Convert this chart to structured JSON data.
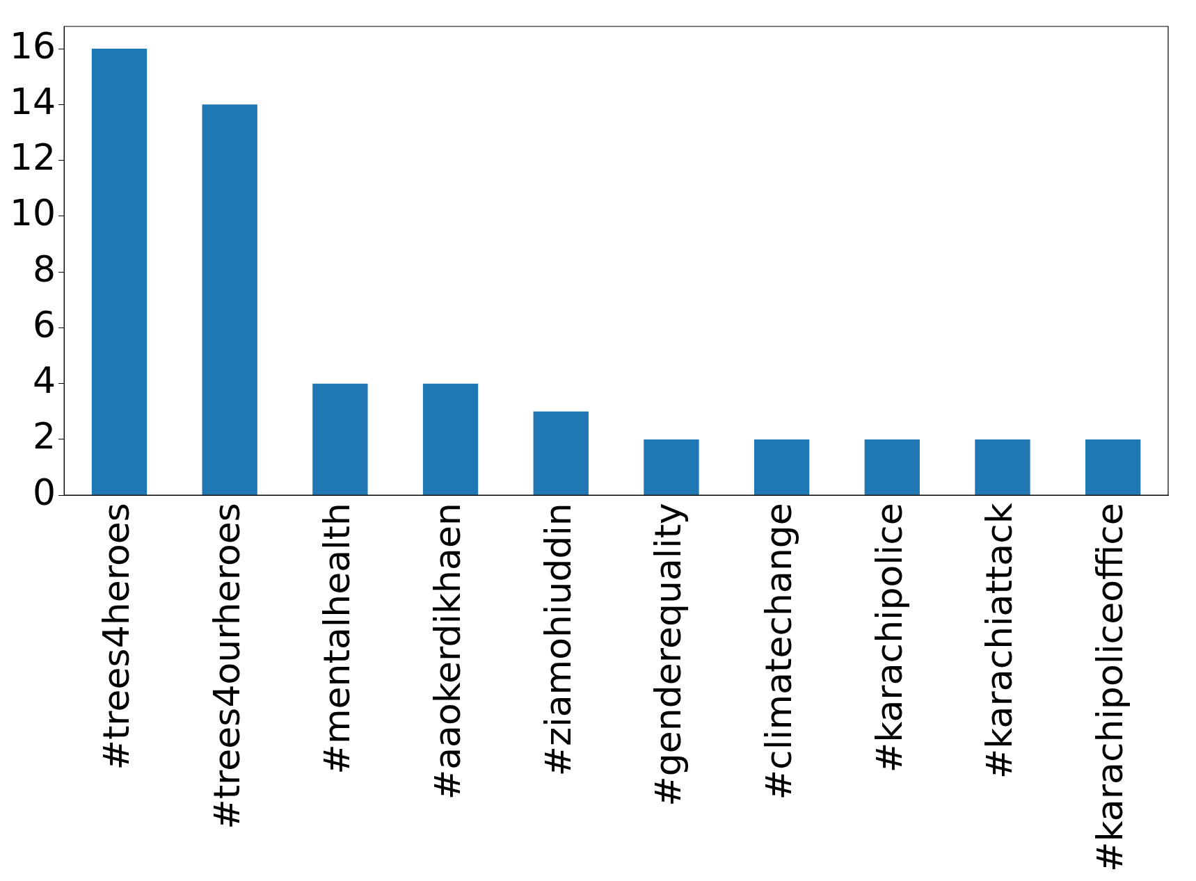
{
  "chart_data": {
    "type": "bar",
    "categories": [
      "#trees4heroes",
      "#trees4ourheroes",
      "#mentalhealth",
      "#aaokerdikhaen",
      "#ziamohiuddin",
      "#genderequality",
      "#climatechange",
      "#karachipolice",
      "#karachiattack",
      "#karachipoliceoffice"
    ],
    "values": [
      16,
      14,
      4,
      4,
      3,
      2,
      2,
      2,
      2,
      2
    ],
    "color": "#1f77b4",
    "ylim": [
      0,
      16.8
    ],
    "yticks": [
      0,
      2,
      4,
      6,
      8,
      10,
      12,
      14,
      16
    ],
    "grid": false,
    "legend": false
  }
}
